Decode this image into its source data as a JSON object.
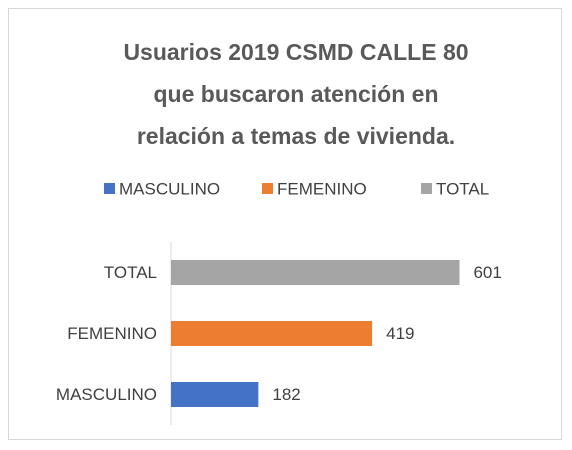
{
  "chart_data": {
    "type": "barh",
    "title": [
      "Usuarios 2019 CSMD CALLE 80",
      "que buscaron atención en",
      "relación a temas de vivienda."
    ],
    "categories": [
      "MASCULINO",
      "FEMENINO",
      "TOTAL"
    ],
    "values": [
      182,
      419,
      601
    ],
    "colors": [
      "#4472c4",
      "#ed7d31",
      "#a5a5a5"
    ],
    "xlim": [
      0,
      700
    ],
    "legend": "top"
  }
}
